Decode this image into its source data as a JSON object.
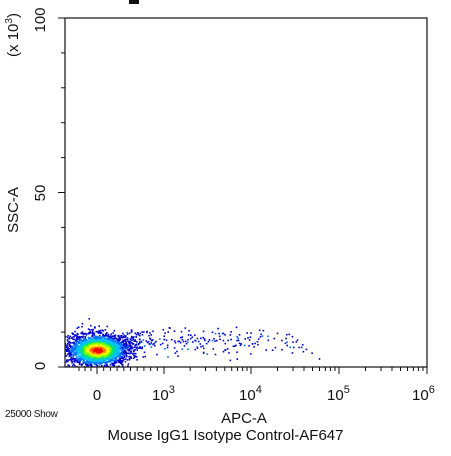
{
  "chart_data": {
    "type": "scatter",
    "subtype": "flow-cytometry-density-dot-plot",
    "xlabel": "APC-A",
    "ylabel": "SSC-A",
    "y_multiplier": "(x 10",
    "y_multiplier_exp": "3",
    "y_multiplier_close": ")",
    "x_scale": "biexponential",
    "x_ticks": [
      {
        "base": "0",
        "exp": ""
      },
      {
        "base": "10",
        "exp": "3"
      },
      {
        "base": "10",
        "exp": "4"
      },
      {
        "base": "10",
        "exp": "5"
      },
      {
        "base": "10",
        "exp": "6"
      }
    ],
    "y_ticks": [
      "0",
      "50",
      "100"
    ],
    "ylim": [
      0,
      100
    ],
    "event_count": "25000 Show",
    "population": {
      "x_center": 0,
      "y_center": 5,
      "y_spread": 3
    },
    "density_colors": [
      "#0000cc",
      "#0070ff",
      "#00c0ff",
      "#00e080",
      "#80ff00",
      "#ffff00",
      "#ff8000",
      "#ff0000"
    ]
  },
  "caption": "Mouse IgG1 Isotype Control-AF647"
}
